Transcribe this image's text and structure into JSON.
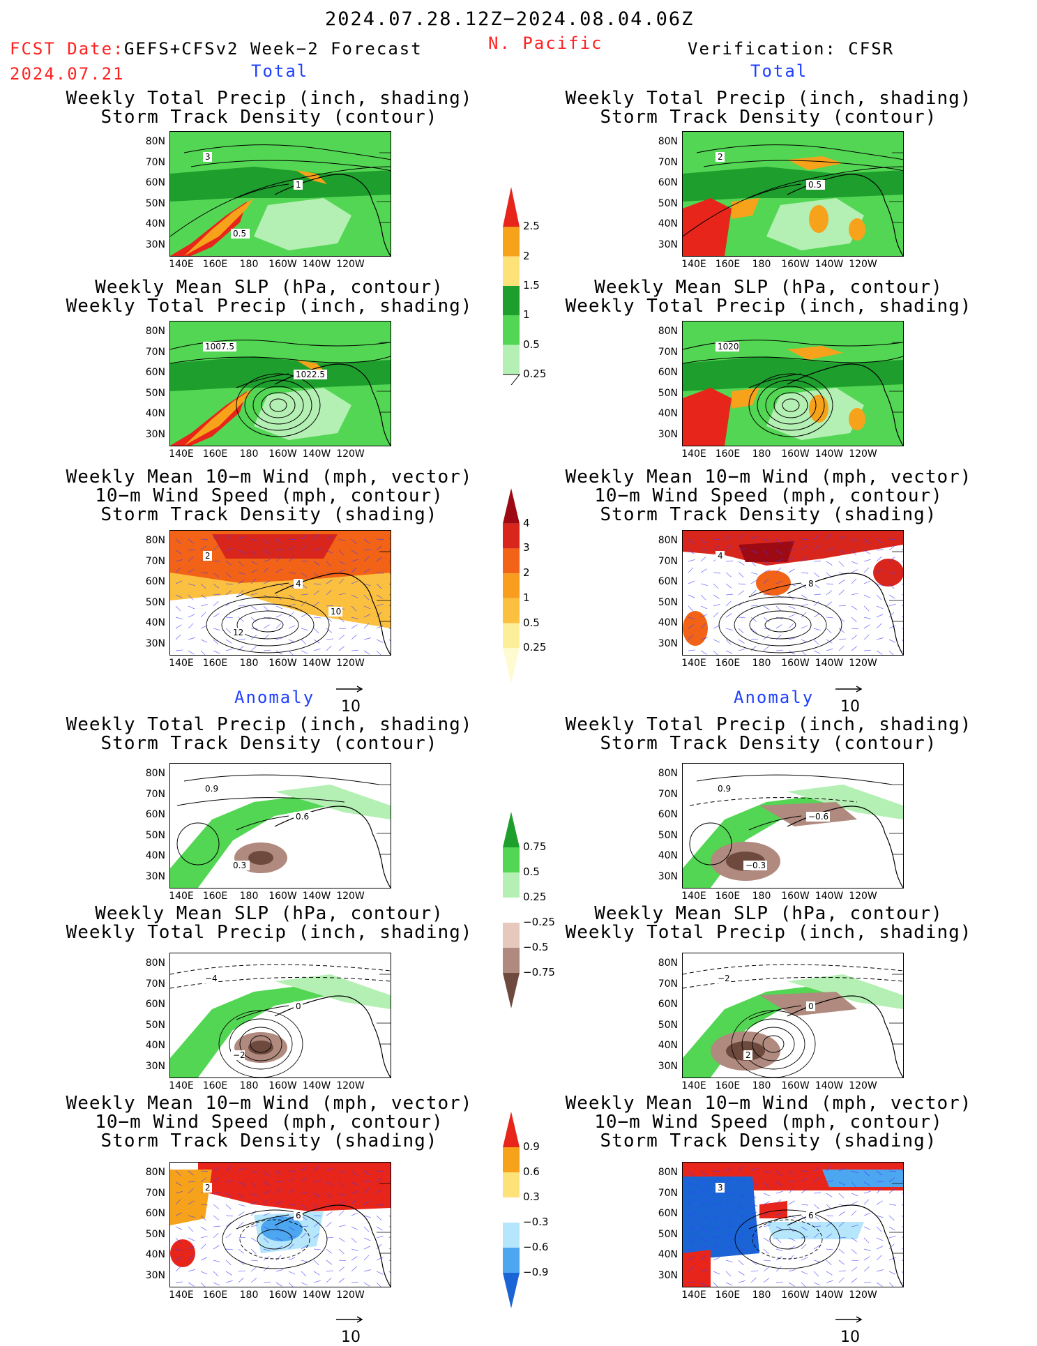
{
  "header": {
    "date_range": "2024.07.28.12Z−2024.08.04.06Z",
    "fcst_label": "FCST Date:",
    "model": "GEFS+CFSv2 Week−2 Forecast",
    "region": "N. Pacific",
    "fcst_date": "2024.07.21",
    "verification": "Verification: CFSR"
  },
  "sections": {
    "total": "Total",
    "anomaly": "Anomaly"
  },
  "titles": {
    "precip_storm": [
      "Weekly Total Precip (inch, shading)",
      "Storm Track Density (contour)"
    ],
    "slp_precip": [
      "Weekly Mean SLP (hPa, contour)",
      "Weekly Total Precip (inch, shading)"
    ],
    "wind_storm": [
      "Weekly Mean 10−m Wind (mph, vector)",
      "10−m Wind Speed (mph, contour)",
      "Storm Track Density (shading)"
    ]
  },
  "axes": {
    "lat_ticks": [
      "80N",
      "70N",
      "60N",
      "50N",
      "40N",
      "30N"
    ],
    "lon_ticks": [
      "140E",
      "160E",
      "180",
      "160W",
      "140W",
      "120W"
    ]
  },
  "vector_ref": "10",
  "panel_labels": {
    "f_tot_precip": [
      "3",
      "1",
      "0.5"
    ],
    "v_tot_precip": [
      "2",
      "0.5"
    ],
    "f_tot_slp": [
      "1007.5",
      "1022.5"
    ],
    "v_tot_slp": [
      "1020"
    ],
    "f_tot_wind": [
      "2",
      "4",
      "12",
      "10"
    ],
    "v_tot_wind": [
      "4",
      "8"
    ],
    "f_anom_precip": [
      "0.9",
      "0.6",
      "0.3"
    ],
    "v_anom_precip": [
      "0.9",
      "−0.6",
      "−0.3"
    ],
    "f_anom_slp": [
      "−4",
      "0",
      "−2"
    ],
    "v_anom_slp": [
      "−2",
      "0",
      "2"
    ],
    "f_anom_wind": [
      "2",
      "6"
    ],
    "v_anom_wind": [
      "3",
      "6"
    ]
  },
  "colorbars": {
    "total_precip": {
      "labels": [
        "2.5",
        "2",
        "1.5",
        "1",
        "0.5",
        "0.25"
      ],
      "colors": [
        "#e8251b",
        "#f7a21b",
        "#fde27a",
        "#1e9e2d",
        "#53d653",
        "#b4f0b4"
      ]
    },
    "storm_density": {
      "labels": [
        "4",
        "3",
        "2",
        "1",
        "0.5",
        "0.25"
      ],
      "colors": [
        "#9e0a14",
        "#d9261c",
        "#f26318",
        "#f89d1d",
        "#fbc040",
        "#fdee9a",
        "#fffbd0"
      ]
    },
    "precip_anom": {
      "labels": [
        "0.75",
        "0.5",
        "0.25",
        "−0.25",
        "−0.5",
        "−0.75"
      ],
      "colors": [
        "#1e9e2d",
        "#53d653",
        "#b4f0b4",
        "#ffffff",
        "#e6c8bf",
        "#b08a7e",
        "#6e4a3e"
      ]
    },
    "density_anom": {
      "labels": [
        "0.9",
        "0.6",
        "0.3",
        "−0.3",
        "−0.6",
        "−0.9"
      ],
      "colors": [
        "#e8251b",
        "#f7a21b",
        "#fde27a",
        "#ffffff",
        "#b5e6fb",
        "#4da6f0",
        "#1a64d6"
      ]
    }
  }
}
